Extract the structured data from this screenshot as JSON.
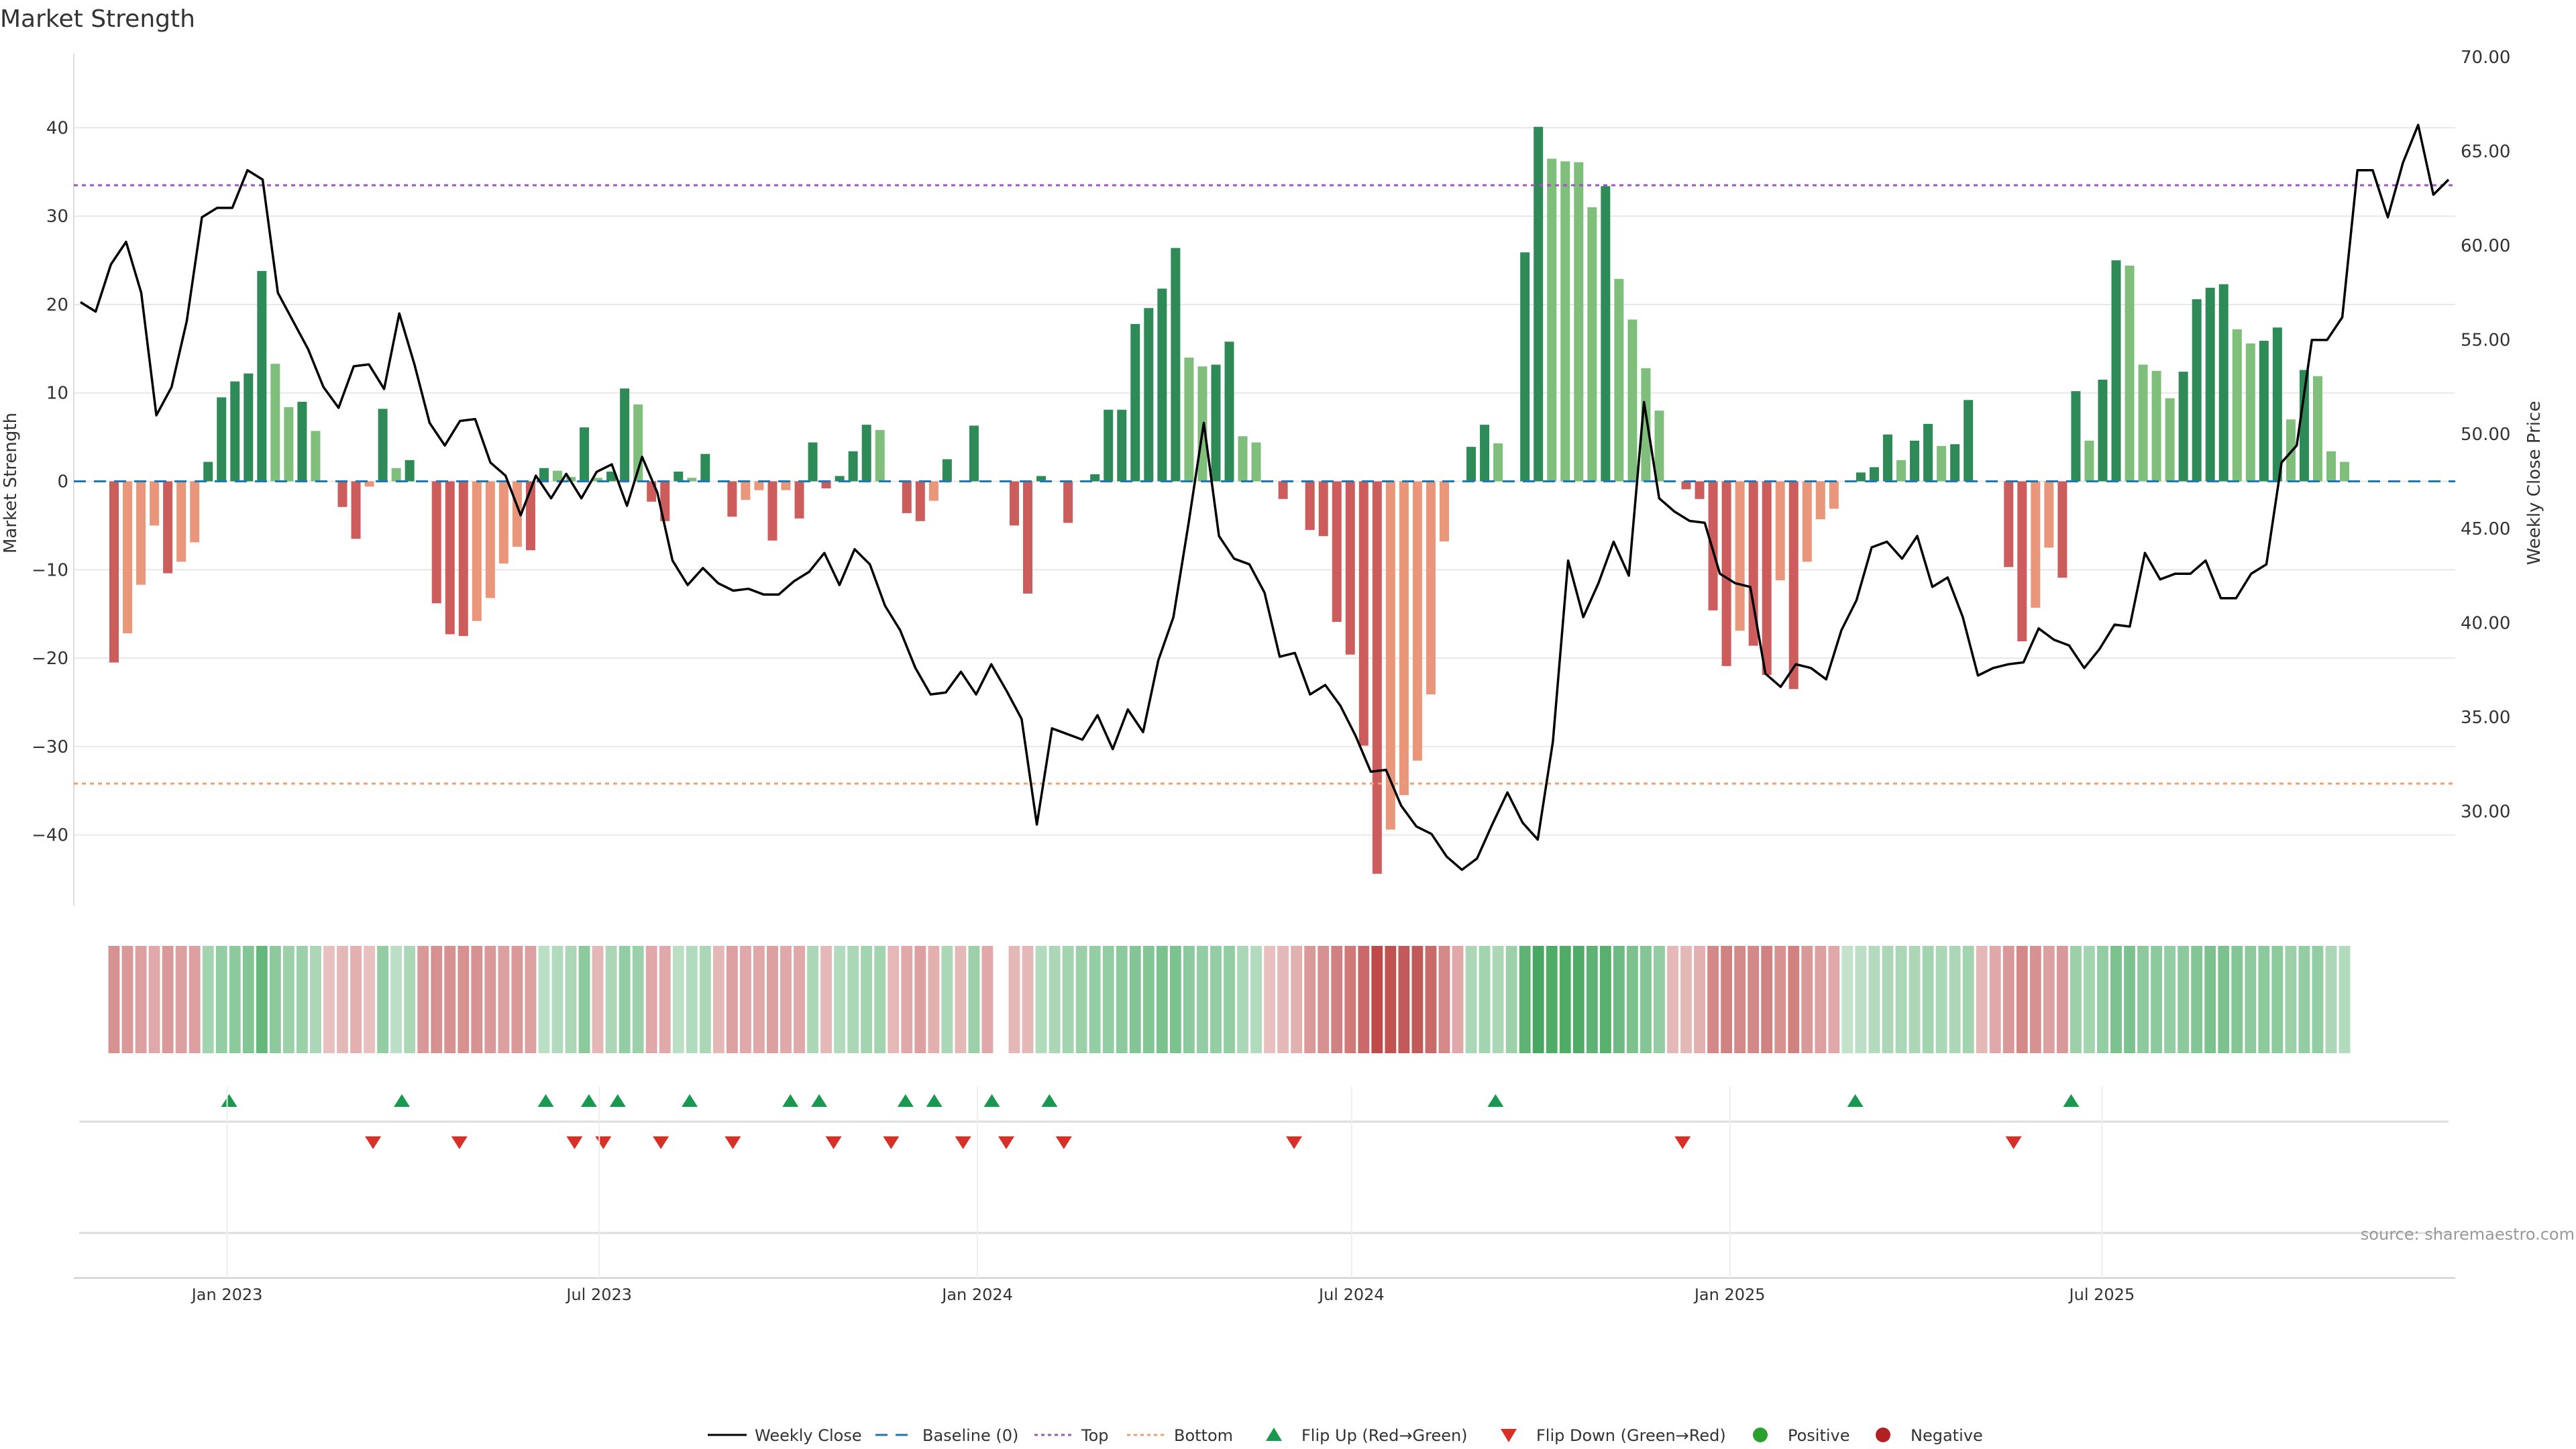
{
  "title": "Market Strength",
  "source": "source: sharemaestro.com",
  "colors": {
    "pos_strong": "#2e8b57",
    "pos_light": "#7fbf7b",
    "neg_strong": "#cd5c5c",
    "neg_light": "#e9967a",
    "price": "#000000",
    "top": "#9b59b6",
    "bottom": "#f0a070",
    "baseline": "#1f77b4",
    "flip_up": "#1a9850",
    "flip_down": "#d73027",
    "positive": "#2ca02c",
    "negative": "#b22222"
  },
  "chart_data": {
    "type": "bar",
    "ylabel_left": "Market Strength",
    "ylabel_right": "Weekly Close Price",
    "ylim_left": [
      -48,
      48
    ],
    "ylim_right": [
      25,
      70
    ],
    "yticks_left": [
      40,
      30,
      20,
      10,
      0,
      -10,
      -20,
      -30,
      -40
    ],
    "yticks_left_labels": [
      "40",
      "30",
      "20",
      "10",
      "0",
      "−10",
      "−20",
      "−30",
      "−40"
    ],
    "yticks_right": [
      70,
      65,
      60,
      55,
      50,
      45,
      40,
      35,
      30
    ],
    "yticks_right_labels": [
      "70.00",
      "65.00",
      "60.00",
      "55.00",
      "50.00",
      "45.00",
      "40.00",
      "35.00",
      "30.00"
    ],
    "top_line": 33.5,
    "bottom_line": -34.2,
    "x_start": "2022-11-07",
    "x_end": "2025-10-27",
    "xticks": [
      {
        "date": "2023-01-01",
        "label": "Jan 2023"
      },
      {
        "date": "2023-07-01",
        "label": "Jul 2023"
      },
      {
        "date": "2024-01-01",
        "label": "Jan 2024"
      },
      {
        "date": "2024-07-01",
        "label": "Jul 2024"
      },
      {
        "date": "2025-01-01",
        "label": "Jan 2025"
      },
      {
        "date": "2025-07-01",
        "label": "Jul 2025"
      }
    ],
    "strength": [
      -20.5,
      -17.2,
      -11.7,
      -5.0,
      -10.4,
      -9.1,
      -6.9,
      2.2,
      9.5,
      11.3,
      12.2,
      23.8,
      13.3,
      8.4,
      9.0,
      5.7,
      0,
      -2.9,
      -6.5,
      -0.6,
      8.2,
      1.5,
      2.4,
      0,
      -13.8,
      -17.3,
      -17.5,
      -15.8,
      -13.2,
      -9.3,
      -7.4,
      -7.8,
      1.5,
      1.2,
      0.5,
      6.1,
      0.4,
      1.1,
      10.5,
      8.7,
      -2.3,
      -4.5,
      1.1,
      0.4,
      3.1,
      0,
      -4.0,
      -2.1,
      -1.0,
      -6.7,
      -1.0,
      -4.2,
      4.4,
      -0.8,
      0.6,
      3.4,
      6.4,
      5.8,
      0,
      -3.6,
      -4.5,
      -2.2,
      2.5,
      0,
      6.3,
      0,
      0,
      -5.0,
      -12.7,
      0.6,
      0,
      -4.7,
      0,
      0.8,
      8.1,
      8.1,
      17.8,
      19.6,
      21.8,
      26.4,
      14.0,
      13.0,
      13.2,
      15.8,
      5.1,
      4.4,
      0,
      -2.0,
      0,
      -5.5,
      -6.2,
      -15.9,
      -19.6,
      -29.9,
      -44.4,
      -39.4,
      -35.5,
      -31.6,
      -24.1,
      -6.8,
      0,
      3.9,
      6.4,
      4.3,
      0,
      25.9,
      40.1,
      36.5,
      36.2,
      36.1,
      31.0,
      33.4,
      22.9,
      18.3,
      12.8,
      8.0,
      0,
      -0.9,
      -2.0,
      -14.6,
      -20.9,
      -16.9,
      -18.6,
      -21.9,
      -11.2,
      -23.5,
      -9.1,
      -4.3,
      -3.1,
      0,
      1.0,
      1.6,
      5.3,
      2.4,
      4.6,
      6.5,
      4.0,
      4.2,
      9.2,
      0,
      0,
      -9.7,
      -18.1,
      -14.3,
      -7.5,
      -10.9,
      10.2,
      4.6,
      11.5,
      25.0,
      24.4,
      13.2,
      12.5,
      9.4,
      12.4,
      20.6,
      21.9,
      22.3,
      17.2,
      15.6,
      15.9,
      17.4,
      7.0,
      12.6,
      11.9,
      3.4,
      2.2
    ],
    "price": [
      57.0,
      56.5,
      59.0,
      60.2,
      57.5,
      51.0,
      52.5,
      56.0,
      61.5,
      62.0,
      62.0,
      64.0,
      63.5,
      57.5,
      56.0,
      54.5,
      52.5,
      51.4,
      53.6,
      53.7,
      52.4,
      56.4,
      53.7,
      50.6,
      49.4,
      50.7,
      50.8,
      48.5,
      47.8,
      45.7,
      47.8,
      46.6,
      47.9,
      46.6,
      48.0,
      48.4,
      46.2,
      48.8,
      46.9,
      43.3,
      42.0,
      42.9,
      42.1,
      41.7,
      41.8,
      41.5,
      41.5,
      42.2,
      42.7,
      43.7,
      42.0,
      43.9,
      43.1,
      40.9,
      39.6,
      37.6,
      36.2,
      36.3,
      37.4,
      36.2,
      37.8,
      36.4,
      34.9,
      29.3,
      34.4,
      34.1,
      33.8,
      35.1,
      33.3,
      35.4,
      34.2,
      38.0,
      40.3,
      45.3,
      50.6,
      44.6,
      43.4,
      43.1,
      41.6,
      38.2,
      38.4,
      36.2,
      36.7,
      35.6,
      34.0,
      32.1,
      32.2,
      30.3,
      29.2,
      28.8,
      27.6,
      26.9,
      27.5,
      29.3,
      31.0,
      29.4,
      28.5,
      33.7,
      43.3,
      40.3,
      42.1,
      44.3,
      42.5,
      51.7,
      46.6,
      45.9,
      45.4,
      45.3,
      42.6,
      42.1,
      41.9,
      37.3,
      36.6,
      37.8,
      37.6,
      37.0,
      39.6,
      41.2,
      44.0,
      44.3,
      43.4,
      44.6,
      41.9,
      42.4,
      40.3,
      37.2,
      37.6,
      37.8,
      37.9,
      39.7,
      39.1,
      38.8,
      37.6,
      38.6,
      39.9,
      39.8,
      43.7,
      42.3,
      42.6,
      42.6,
      43.3,
      41.3,
      41.3,
      42.6,
      43.1,
      48.5,
      49.4,
      55.0,
      55.0,
      56.2,
      64.0,
      64.0,
      61.5,
      64.4,
      66.4,
      62.7,
      63.5
    ],
    "heat": [
      -0.45,
      -0.4,
      -0.35,
      -0.3,
      -0.4,
      -0.35,
      -0.35,
      0.35,
      0.45,
      0.5,
      0.55,
      0.75,
      0.5,
      0.4,
      0.4,
      0.3,
      -0.15,
      -0.2,
      -0.25,
      -0.15,
      0.45,
      0.2,
      0.3,
      -0.4,
      -0.45,
      -0.45,
      -0.45,
      -0.45,
      -0.4,
      -0.35,
      -0.4,
      -0.35,
      0.2,
      0.25,
      0.3,
      0.5,
      -0.2,
      0.3,
      0.45,
      0.4,
      -0.3,
      -0.3,
      0.2,
      0.25,
      0.3,
      -0.2,
      -0.35,
      -0.3,
      -0.3,
      -0.35,
      -0.3,
      -0.3,
      0.3,
      -0.2,
      0.25,
      0.3,
      0.35,
      0.35,
      -0.2,
      -0.3,
      -0.35,
      -0.25,
      0.3,
      -0.2,
      0.4,
      -0.3,
      null,
      -0.2,
      -0.2,
      0.25,
      0.3,
      0.35,
      0.4,
      0.45,
      0.45,
      0.5,
      0.55,
      0.55,
      0.6,
      0.6,
      0.5,
      0.45,
      0.45,
      0.45,
      0.3,
      0.25,
      -0.15,
      -0.2,
      -0.25,
      -0.4,
      -0.45,
      -0.55,
      -0.6,
      -0.7,
      -0.9,
      -0.85,
      -0.8,
      -0.8,
      -0.7,
      -0.5,
      -0.3,
      0.3,
      0.35,
      0.3,
      0.4,
      0.8,
      0.95,
      0.9,
      0.9,
      0.9,
      0.8,
      0.85,
      0.7,
      0.6,
      0.55,
      0.45,
      -0.2,
      -0.2,
      -0.25,
      -0.5,
      -0.55,
      -0.5,
      -0.5,
      -0.55,
      -0.45,
      -0.55,
      -0.4,
      -0.35,
      -0.3,
      0.15,
      0.2,
      0.25,
      0.3,
      0.3,
      0.3,
      0.35,
      0.3,
      0.3,
      0.35,
      -0.2,
      -0.3,
      -0.4,
      -0.5,
      -0.45,
      -0.35,
      -0.4,
      0.4,
      0.35,
      0.45,
      0.6,
      0.6,
      0.5,
      0.5,
      0.45,
      0.5,
      0.55,
      0.6,
      0.6,
      0.55,
      0.5,
      0.5,
      0.5,
      0.4,
      0.45,
      0.45,
      0.3,
      0.25
    ],
    "flip_up": [
      "2023-01-02",
      "2023-03-27",
      "2023-06-05",
      "2023-06-26",
      "2023-07-10",
      "2023-08-14",
      "2023-10-02",
      "2023-10-16",
      "2023-11-27",
      "2023-12-11",
      "2024-01-08",
      "2024-02-05",
      "2024-09-09",
      "2025-03-03",
      "2025-06-16"
    ],
    "flip_down": [
      "2023-03-13",
      "2023-04-24",
      "2023-06-19",
      "2023-07-03",
      "2023-07-31",
      "2023-09-04",
      "2023-10-23",
      "2023-11-20",
      "2023-12-25",
      "2024-01-15",
      "2024-02-12",
      "2024-06-03",
      "2024-12-09",
      "2025-05-19"
    ]
  },
  "legend": [
    {
      "key": "weekly_close",
      "label": "Weekly Close"
    },
    {
      "key": "baseline",
      "label": "Baseline (0)"
    },
    {
      "key": "top",
      "label": "Top"
    },
    {
      "key": "bottom",
      "label": "Bottom"
    },
    {
      "key": "flip_up",
      "label": "Flip Up (Red→Green)"
    },
    {
      "key": "flip_down",
      "label": "Flip Down (Green→Red)"
    },
    {
      "key": "positive",
      "label": "Positive"
    },
    {
      "key": "negative",
      "label": "Negative"
    }
  ]
}
